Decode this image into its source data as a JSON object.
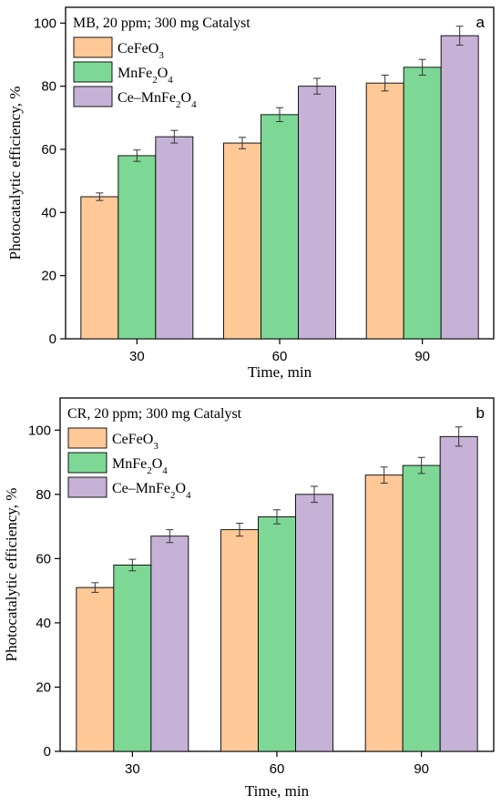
{
  "colors": {
    "CeFeO3": "#fec897",
    "MnFe2O4": "#7dd896",
    "Ce-MnFe2O4": "#c6b2d6"
  },
  "chart_data": [
    {
      "type": "bar",
      "panel_letter": "a",
      "annotation": "MB, 20 ppm; 300 mg Catalyst",
      "xlabel": "Time, min",
      "ylabel": "Photocatalytic efficiency, %",
      "categories": [
        "30",
        "60",
        "90"
      ],
      "ylim": [
        0,
        105
      ],
      "yticks": [
        0,
        20,
        40,
        60,
        80,
        100
      ],
      "legend_position": "top-left",
      "series": [
        {
          "name": "CeFeO₃",
          "color_key": "CeFeO3",
          "values": [
            45,
            62,
            81
          ],
          "errors": [
            1.2,
            1.8,
            2.5
          ]
        },
        {
          "name": "MnFe₂O₄",
          "color_key": "MnFe2O4",
          "values": [
            58,
            71,
            86
          ],
          "errors": [
            1.8,
            2.2,
            2.5
          ]
        },
        {
          "name": "Ce–MnFe₂O₄",
          "color_key": "Ce-MnFe2O4",
          "values": [
            64,
            80,
            96
          ],
          "errors": [
            2.0,
            2.5,
            3.0
          ]
        }
      ]
    },
    {
      "type": "bar",
      "panel_letter": "b",
      "annotation": "CR, 20 ppm; 300 mg Catalyst",
      "xlabel": "Time, min",
      "ylabel": "Photocatalytic efficiency, %",
      "categories": [
        "30",
        "60",
        "90"
      ],
      "ylim": [
        0,
        110
      ],
      "yticks": [
        0,
        20,
        40,
        60,
        80,
        100
      ],
      "legend_position": "top-left",
      "series": [
        {
          "name": "CeFeO₃",
          "color_key": "CeFeO3",
          "values": [
            51,
            69,
            86
          ],
          "errors": [
            1.5,
            2.0,
            2.5
          ]
        },
        {
          "name": "MnFe₂O₄",
          "color_key": "MnFe2O4",
          "values": [
            58,
            73,
            89
          ],
          "errors": [
            1.8,
            2.2,
            2.5
          ]
        },
        {
          "name": "Ce–MnFe₂O₄",
          "color_key": "Ce-MnFe2O4",
          "values": [
            67,
            80,
            98
          ],
          "errors": [
            2.0,
            2.5,
            3.0
          ]
        }
      ]
    }
  ]
}
